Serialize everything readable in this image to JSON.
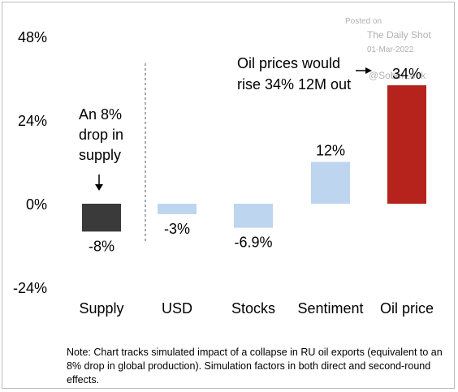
{
  "chart_data": {
    "type": "bar",
    "categories": [
      "Supply",
      "USD",
      "Stocks",
      "Sentiment",
      "Oil price"
    ],
    "values": [
      -8,
      -3,
      -6.9,
      12,
      34
    ],
    "data_labels": [
      "-8%",
      "-3%",
      "-6.9%",
      "12%",
      "34%"
    ],
    "ylim": [
      -24,
      48
    ],
    "yticks": [
      -24,
      0,
      24,
      48
    ],
    "ytick_labels": [
      "-24%",
      "0%",
      "24%",
      "48%"
    ],
    "bar_colors": [
      "#3a3a3a",
      "#bdd5ee",
      "#bdd5ee",
      "#bdd5ee",
      "#b5231c"
    ],
    "grid": false,
    "annotations": {
      "supply_note": [
        "An 8%",
        "drop in",
        "supply"
      ],
      "oil_note": [
        "Oil prices would",
        "rise 34% 12M out"
      ]
    },
    "watermark": {
      "posted": "Posted on",
      "source": "The Daily Shot",
      "date": "01-Mar-2022",
      "handle": "@SoberLook"
    },
    "note": "Note: Chart tracks simulated impact of a collapse in RU oil exports (equivalent to an 8% drop in global production). Simulation factors in both direct and second-round effects."
  }
}
